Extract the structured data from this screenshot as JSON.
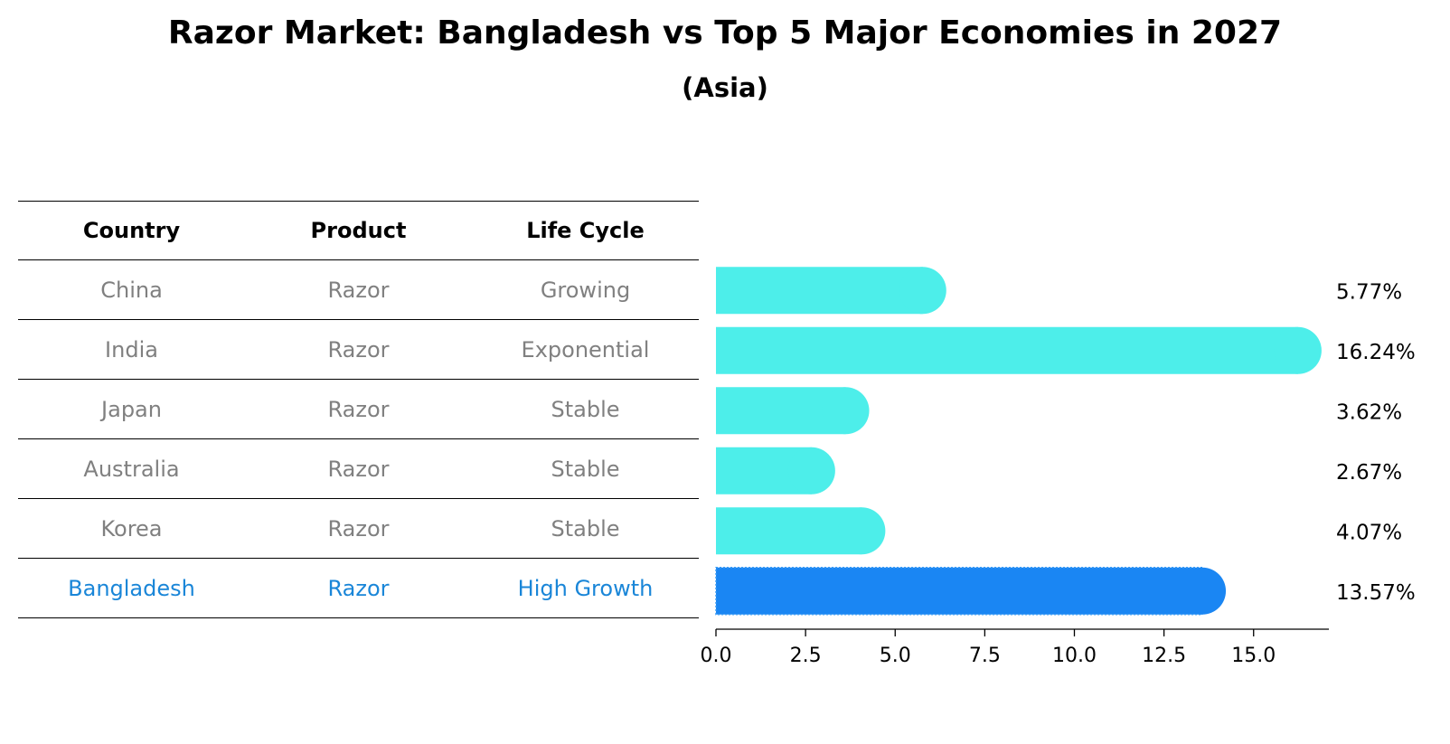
{
  "title": "Razor Market: Bangladesh vs Top 5 Major Economies in 2027",
  "subtitle": "(Asia)",
  "colors": {
    "bar": "#4deeea",
    "highlight": "#1a86f3",
    "highlight_text": "#1a86d8",
    "muted_text": "#808080"
  },
  "table": {
    "headers": [
      "Country",
      "Product",
      "Life Cycle"
    ],
    "rows": [
      {
        "country": "China",
        "product": "Razor",
        "life_cycle": "Growing",
        "highlight": false
      },
      {
        "country": "India",
        "product": "Razor",
        "life_cycle": "Exponential",
        "highlight": false
      },
      {
        "country": "Japan",
        "product": "Razor",
        "life_cycle": "Stable",
        "highlight": false
      },
      {
        "country": "Australia",
        "product": "Razor",
        "life_cycle": "Stable",
        "highlight": false
      },
      {
        "country": "Korea",
        "product": "Razor",
        "life_cycle": "Stable",
        "highlight": false
      },
      {
        "country": "Bangladesh",
        "product": "Razor",
        "life_cycle": "High Growth",
        "highlight": true
      }
    ]
  },
  "chart_data": {
    "type": "bar",
    "orientation": "horizontal",
    "categories": [
      "China",
      "India",
      "Japan",
      "Australia",
      "Korea",
      "Bangladesh"
    ],
    "values": [
      5.77,
      16.24,
      3.62,
      2.67,
      4.07,
      13.57
    ],
    "value_labels": [
      "5.77%",
      "16.24%",
      "3.62%",
      "2.67%",
      "4.07%",
      "13.57%"
    ],
    "highlight_category": "Bangladesh",
    "xlim": [
      0,
      17.1
    ],
    "xticks": [
      0,
      2.5,
      5,
      7.5,
      10,
      12.5,
      15
    ],
    "xtick_labels": [
      "0.0",
      "2.5",
      "5.0",
      "7.5",
      "10.0",
      "12.5",
      "15.0"
    ],
    "xlabel": "",
    "ylabel": "",
    "grid": false
  }
}
